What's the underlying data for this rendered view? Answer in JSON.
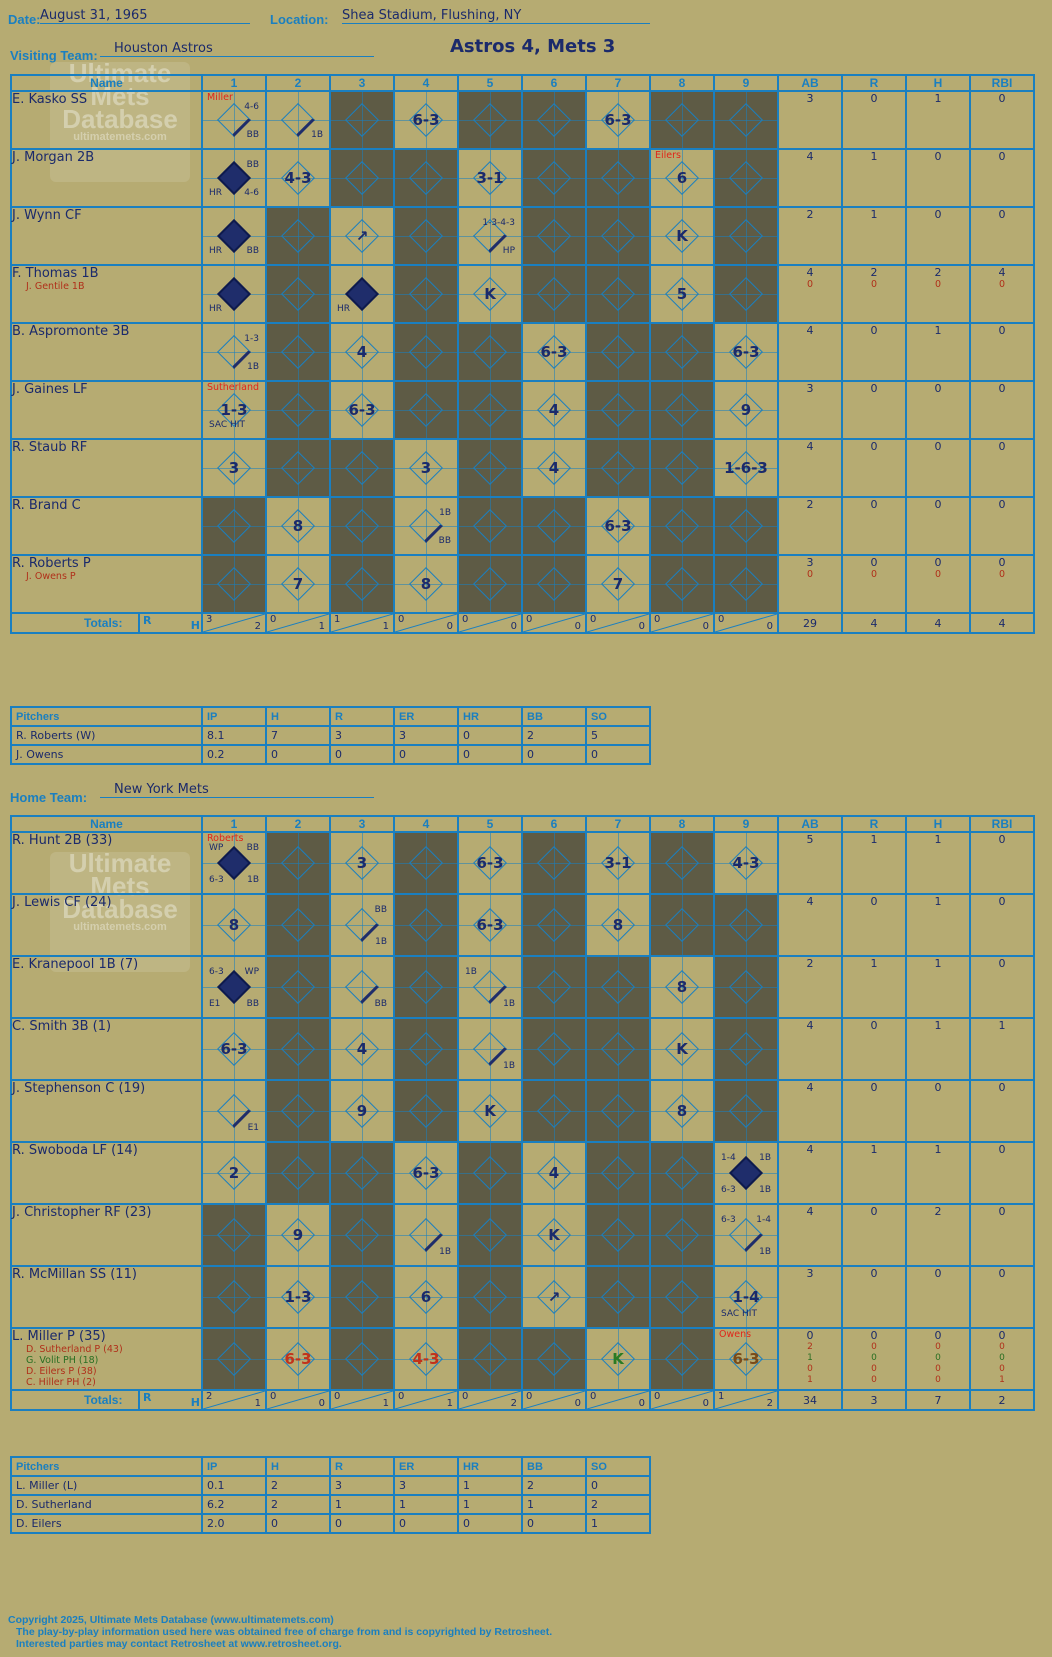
{
  "header": {
    "date_label": "Date:",
    "date": "August 31, 1965",
    "location_label": "Location:",
    "location": "Shea Stadium, Flushing, NY",
    "visiting_label": "Visiting Team:",
    "visiting_team": "Houston Astros",
    "score": "Astros 4, Mets 3",
    "home_label": "Home Team:",
    "home_team": "New York Mets"
  },
  "columns": {
    "name": "Name",
    "innings": [
      "1",
      "2",
      "3",
      "4",
      "5",
      "6",
      "7",
      "8",
      "9"
    ],
    "stats": [
      "AB",
      "R",
      "H",
      "RBI"
    ],
    "totals": "Totals:",
    "r": "R",
    "h": "H"
  },
  "watermark": {
    "line1": "Ultimate",
    "line2": "Mets",
    "line3": "Database",
    "url": "ultimatemets.com"
  },
  "visitors": {
    "batters": [
      {
        "name": "E. Kasko SS",
        "subs": [],
        "stats": [
          "3",
          "0",
          "1",
          "0"
        ],
        "sub_stats": []
      },
      {
        "name": "J. Morgan 2B",
        "subs": [],
        "stats": [
          "4",
          "1",
          "0",
          "0"
        ],
        "sub_stats": []
      },
      {
        "name": "J. Wynn CF",
        "subs": [],
        "stats": [
          "2",
          "1",
          "0",
          "0"
        ],
        "sub_stats": []
      },
      {
        "name": "F. Thomas 1B",
        "subs": [
          "J. Gentile 1B"
        ],
        "stats": [
          "4",
          "2",
          "2",
          "4"
        ],
        "sub_stats": [
          [
            "0",
            "0",
            "0",
            "0"
          ]
        ]
      },
      {
        "name": "B. Aspromonte 3B",
        "subs": [],
        "stats": [
          "4",
          "0",
          "1",
          "0"
        ],
        "sub_stats": []
      },
      {
        "name": "J. Gaines LF",
        "subs": [],
        "stats": [
          "3",
          "0",
          "0",
          "0"
        ],
        "sub_stats": []
      },
      {
        "name": "R. Staub RF",
        "subs": [],
        "stats": [
          "4",
          "0",
          "0",
          "0"
        ],
        "sub_stats": []
      },
      {
        "name": "R. Brand C",
        "subs": [],
        "stats": [
          "2",
          "0",
          "0",
          "0"
        ],
        "sub_stats": []
      },
      {
        "name": "R. Roberts P",
        "subs": [
          "J. Owens P"
        ],
        "stats": [
          "3",
          "0",
          "0",
          "0"
        ],
        "sub_stats": [
          [
            "0",
            "0",
            "0",
            "0"
          ]
        ]
      }
    ],
    "totals_innings": [
      [
        "3",
        "2"
      ],
      [
        "0",
        "1"
      ],
      [
        "1",
        "1"
      ],
      [
        "0",
        "0"
      ],
      [
        "0",
        "0"
      ],
      [
        "0",
        "0"
      ],
      [
        "0",
        "0"
      ],
      [
        "0",
        "0"
      ],
      [
        "0",
        "0"
      ]
    ],
    "totals_stats": [
      "29",
      "4",
      "4",
      "4"
    ],
    "pitchers_header": [
      "Pitchers",
      "IP",
      "H",
      "R",
      "ER",
      "HR",
      "BB",
      "SO"
    ],
    "pitchers": [
      [
        "R. Roberts (W)",
        "8.1",
        "7",
        "3",
        "3",
        "0",
        "2",
        "5"
      ],
      [
        "J. Owens",
        "0.2",
        "0",
        "0",
        "0",
        "0",
        "0",
        "0"
      ]
    ]
  },
  "home": {
    "batters": [
      {
        "name": "R. Hunt 2B (33)",
        "subs": [],
        "stats": [
          "5",
          "1",
          "1",
          "0"
        ],
        "sub_stats": []
      },
      {
        "name": "J. Lewis CF (24)",
        "subs": [],
        "stats": [
          "4",
          "0",
          "1",
          "0"
        ],
        "sub_stats": []
      },
      {
        "name": "E. Kranepool 1B (7)",
        "subs": [],
        "stats": [
          "2",
          "1",
          "1",
          "0"
        ],
        "sub_stats": []
      },
      {
        "name": "C. Smith 3B (1)",
        "subs": [],
        "stats": [
          "4",
          "0",
          "1",
          "1"
        ],
        "sub_stats": []
      },
      {
        "name": "J. Stephenson C (19)",
        "subs": [],
        "stats": [
          "4",
          "0",
          "0",
          "0"
        ],
        "sub_stats": []
      },
      {
        "name": "R. Swoboda LF (14)",
        "subs": [],
        "stats": [
          "4",
          "1",
          "1",
          "0"
        ],
        "sub_stats": []
      },
      {
        "name": "J. Christopher RF (23)",
        "subs": [],
        "stats": [
          "4",
          "0",
          "2",
          "0"
        ],
        "sub_stats": []
      },
      {
        "name": "R. McMillan SS (11)",
        "subs": [],
        "stats": [
          "3",
          "0",
          "0",
          "0"
        ],
        "sub_stats": []
      },
      {
        "name": "L. Miller P (35)",
        "subs": [
          "D. Sutherland P (43)",
          "G. Volit PH (18)",
          "D. Eilers P (38)",
          "C. Hiller PH (2)"
        ],
        "stats": [
          "0",
          "0",
          "0",
          "0"
        ],
        "sub_stats": [
          [
            "2",
            "0",
            "0",
            "0"
          ],
          [
            "1",
            "0",
            "0",
            "0"
          ],
          [
            "0",
            "0",
            "0",
            "0"
          ],
          [
            "1",
            "0",
            "0",
            "1"
          ]
        ]
      }
    ],
    "totals_innings": [
      [
        "2",
        "1"
      ],
      [
        "0",
        "0"
      ],
      [
        "0",
        "1"
      ],
      [
        "0",
        "1"
      ],
      [
        "0",
        "2"
      ],
      [
        "0",
        "0"
      ],
      [
        "0",
        "0"
      ],
      [
        "0",
        "0"
      ],
      [
        "1",
        "2"
      ]
    ],
    "totals_stats": [
      "34",
      "3",
      "7",
      "2"
    ],
    "pitchers_header": [
      "Pitchers",
      "IP",
      "H",
      "R",
      "ER",
      "HR",
      "BB",
      "SO"
    ],
    "pitchers": [
      [
        "L. Miller (L)",
        "0.1",
        "2",
        "3",
        "3",
        "1",
        "2",
        "0"
      ],
      [
        "D. Sutherland",
        "6.2",
        "2",
        "1",
        "1",
        "1",
        "1",
        "2"
      ],
      [
        "D. Eilers",
        "2.0",
        "0",
        "0",
        "0",
        "0",
        "0",
        "1"
      ]
    ]
  },
  "footer": {
    "line1": "Copyright 2025, Ultimate Mets Database (www.ultimatemets.com)",
    "line2": "The play-by-play information used here was obtained free of charge from and is copyrighted by Retrosheet.",
    "line3": "Interested parties may contact Retrosheet at www.retrosheet.org."
  }
}
